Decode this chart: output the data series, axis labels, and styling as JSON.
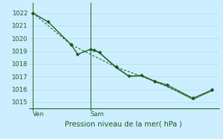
{
  "title": "Pression niveau de la mer( hPa )",
  "bg_color": "#cceeff",
  "grid_color": "#aadddd",
  "line_color": "#1a5c1a",
  "spine_color": "#1a5c1a",
  "ylim": [
    1014.5,
    1022.8
  ],
  "yticks": [
    1015,
    1016,
    1017,
    1018,
    1019,
    1020,
    1021,
    1022
  ],
  "xlim": [
    -0.3,
    14.5
  ],
  "ven_x": 0,
  "sam_x": 4.5,
  "series1_x": [
    0,
    1.2,
    3.0,
    3.5,
    4.5,
    4.8,
    5.2,
    6.5,
    7.5,
    8.5,
    9.5,
    10.5,
    12.5,
    14.0
  ],
  "series1_y": [
    1022.0,
    1021.3,
    1019.5,
    1018.75,
    1019.15,
    1019.1,
    1018.9,
    1017.75,
    1017.05,
    1017.1,
    1016.65,
    1016.35,
    1015.3,
    1015.95
  ],
  "series2_x": [
    0,
    1.2,
    3.0,
    3.5,
    4.5,
    4.8,
    5.2,
    6.5,
    7.5,
    8.5,
    9.5,
    10.5,
    12.5,
    14.0
  ],
  "series2_y": [
    1022.0,
    1021.3,
    1019.5,
    1018.75,
    1019.15,
    1019.05,
    1018.85,
    1017.7,
    1017.0,
    1017.05,
    1016.6,
    1016.25,
    1015.2,
    1015.9
  ],
  "series3_x": [
    0,
    3.0,
    6.5,
    9.5,
    12.5,
    14.0
  ],
  "series3_y": [
    1022.0,
    1019.5,
    1017.75,
    1016.65,
    1015.3,
    1015.95
  ],
  "marker_size": 2.5,
  "line_width": 0.8,
  "title_fontsize": 7.5,
  "tick_fontsize": 6.5
}
